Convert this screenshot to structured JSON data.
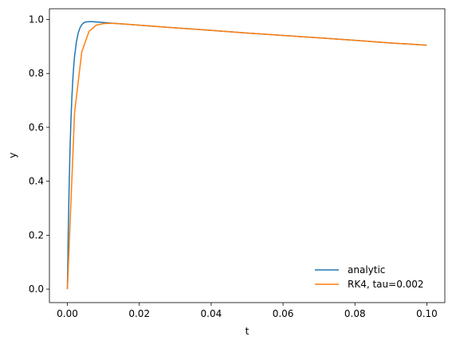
{
  "chart_data": {
    "type": "line",
    "xlabel": "t",
    "ylabel": "y",
    "xlim": [
      -0.005,
      0.105
    ],
    "ylim": [
      -0.05,
      1.04
    ],
    "xticks": [
      "0.00",
      "0.02",
      "0.04",
      "0.06",
      "0.08",
      "0.10"
    ],
    "yticks": [
      "0.0",
      "0.2",
      "0.4",
      "0.6",
      "0.8",
      "1.0"
    ],
    "grid": false,
    "legend_position": "lower-right",
    "series": [
      {
        "name": "analytic",
        "color": "#1f77b4",
        "x": [
          0.0,
          0.00025,
          0.0005,
          0.00075,
          0.001,
          0.00125,
          0.0015,
          0.00175,
          0.002,
          0.0025,
          0.003,
          0.0035,
          0.004,
          0.0045,
          0.005,
          0.006,
          0.007,
          0.008,
          0.009,
          0.01,
          0.011,
          0.012,
          0.014,
          0.016,
          0.02,
          0.03,
          0.04,
          0.05,
          0.06,
          0.07,
          0.08,
          0.09,
          0.1
        ],
        "y": [
          0.0,
          0.221,
          0.393,
          0.527,
          0.631,
          0.712,
          0.776,
          0.825,
          0.864,
          0.917,
          0.95,
          0.969,
          0.981,
          0.987,
          0.991,
          0.992,
          0.992,
          0.991,
          0.99,
          0.989,
          0.988,
          0.987,
          0.985,
          0.983,
          0.979,
          0.969,
          0.96,
          0.95,
          0.941,
          0.932,
          0.923,
          0.913,
          0.905
        ]
      },
      {
        "name": "RK4, tau=0.002",
        "color": "#ff7f0e",
        "x": [
          0.0,
          0.002,
          0.004,
          0.006,
          0.008,
          0.01,
          0.012,
          0.014,
          0.016,
          0.02,
          0.03,
          0.04,
          0.05,
          0.06,
          0.07,
          0.08,
          0.09,
          0.1
        ],
        "y": [
          0.0,
          0.655,
          0.88,
          0.956,
          0.979,
          0.985,
          0.986,
          0.985,
          0.983,
          0.979,
          0.969,
          0.96,
          0.95,
          0.941,
          0.932,
          0.923,
          0.913,
          0.905
        ]
      }
    ]
  }
}
